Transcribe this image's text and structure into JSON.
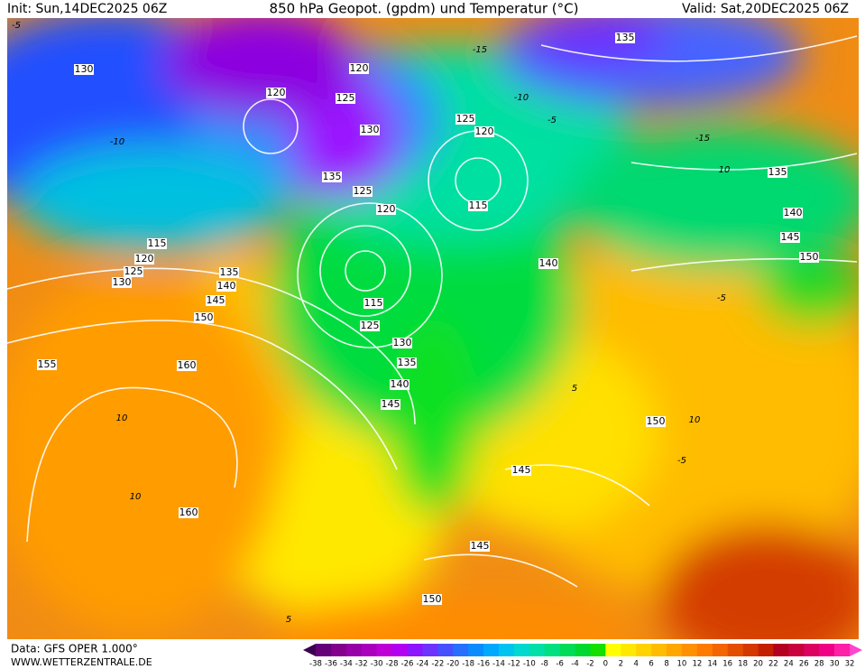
{
  "header": {
    "init": "Init: Sun,14DEC2025 06Z",
    "title": "850 hPa Geopot. (gpdm) und Temperatur (°C)",
    "valid": "Valid: Sat,20DEC2025 06Z"
  },
  "contour_labels": [
    130,
    120,
    120,
    125,
    130,
    135,
    125,
    120,
    115,
    120,
    125,
    130,
    135,
    140,
    145,
    150,
    155,
    160,
    115,
    125,
    130,
    135,
    140,
    145,
    125,
    120,
    115,
    140,
    135,
    135,
    140,
    145,
    150,
    150,
    145,
    145,
    150,
    160
  ],
  "temperature_labels": [
    -5,
    -15,
    -10,
    -5,
    -15,
    10,
    -10,
    10,
    10,
    -5,
    -5,
    5,
    10,
    5
  ],
  "colorbar": {
    "labels": [
      -38,
      -36,
      -34,
      -32,
      -30,
      -28,
      -26,
      -24,
      -22,
      -20,
      -18,
      -16,
      -14,
      -12,
      -10,
      -8,
      -6,
      -4,
      -2,
      0,
      2,
      4,
      6,
      8,
      10,
      12,
      14,
      16,
      18,
      20,
      22,
      24,
      26,
      28,
      30,
      32
    ],
    "colors": [
      "#3c0050",
      "#640078",
      "#82008c",
      "#9600a6",
      "#aa00be",
      "#be00d6",
      "#b400f0",
      "#8c14ff",
      "#6e32ff",
      "#4650ff",
      "#286eff",
      "#0a8cff",
      "#00a8ff",
      "#00c4f0",
      "#00d8d0",
      "#00e0a8",
      "#00e080",
      "#00dc58",
      "#00d830",
      "#14e000",
      "#ffff00",
      "#ffe800",
      "#ffd200",
      "#ffbc00",
      "#ffa600",
      "#ff9000",
      "#ff7a00",
      "#f46400",
      "#e44e00",
      "#d43800",
      "#c42000",
      "#b40020",
      "#c8003c",
      "#dc0060",
      "#f00084",
      "#ff20a8",
      "#ff44d0"
    ]
  },
  "footer": {
    "source": "Data: GFS OPER 1.000°",
    "site": "WWW.WETTERZENTRALE.DE"
  }
}
